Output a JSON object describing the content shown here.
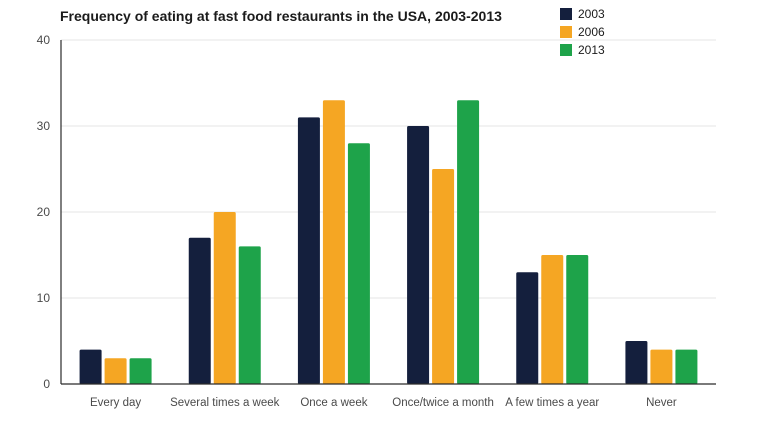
{
  "chart_data": {
    "type": "bar",
    "title": "Frequency of eating at fast food restaurants in the USA, 2003-2013",
    "categories": [
      "Every day",
      "Several times a week",
      "Once a week",
      "Once/twice a month",
      "A few times a year",
      "Never"
    ],
    "series": [
      {
        "name": "2003",
        "color": "#141f3d",
        "values": [
          4,
          17,
          31,
          30,
          13,
          5
        ]
      },
      {
        "name": "2006",
        "color": "#f5a623",
        "values": [
          3,
          20,
          33,
          25,
          15,
          4
        ]
      },
      {
        "name": "2013",
        "color": "#1ea34a",
        "values": [
          3,
          16,
          28,
          33,
          15,
          4
        ]
      }
    ],
    "ylim": [
      0,
      40
    ],
    "yticks": [
      0,
      10,
      20,
      30,
      40
    ],
    "grid": true,
    "legend_position": "top-right"
  }
}
